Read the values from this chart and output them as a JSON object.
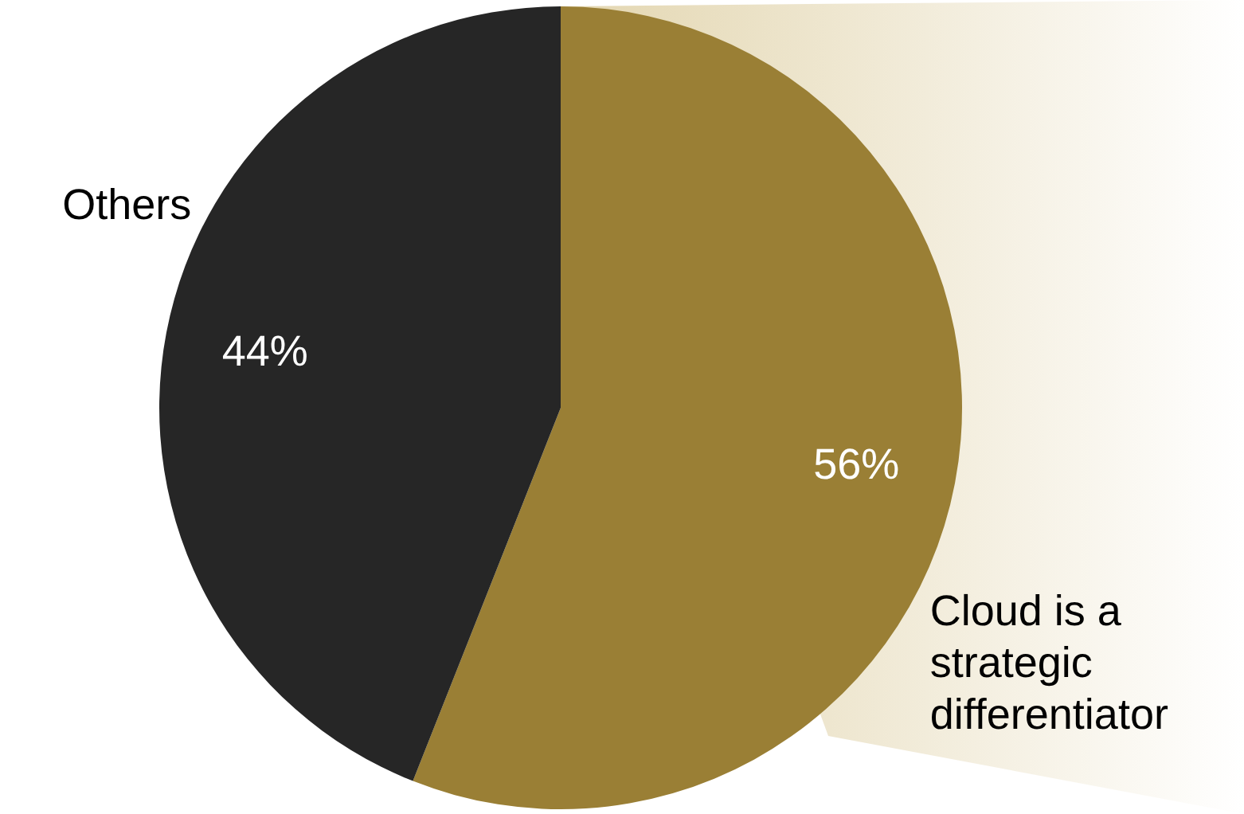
{
  "chart_data": {
    "type": "pie",
    "categories": [
      "Cloud is a strategic differentiator",
      "Others"
    ],
    "values": [
      56,
      44
    ],
    "colors": [
      "#9a7f35",
      "#262626"
    ],
    "value_labels": [
      "56%",
      "44%"
    ]
  }
}
